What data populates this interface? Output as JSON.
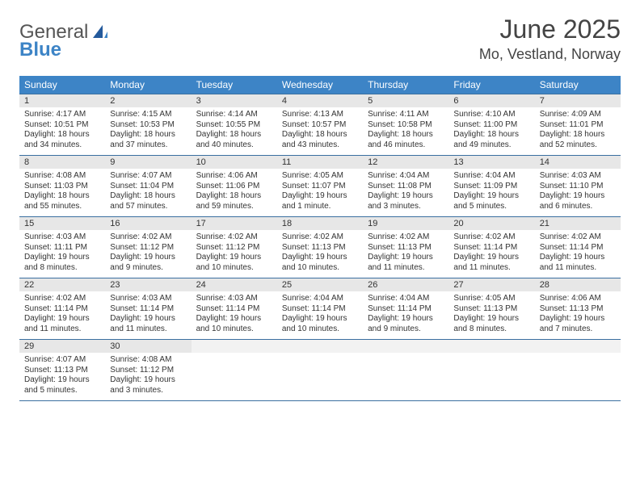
{
  "logo": {
    "text1": "General",
    "text2": "Blue"
  },
  "colors": {
    "header_bg": "#3d84c6",
    "row_border": "#3a6fa0",
    "daynum_bg": "#e7e7e7"
  },
  "title": {
    "month": "June 2025",
    "location": "Mo, Vestland, Norway"
  },
  "weekdays": [
    "Sunday",
    "Monday",
    "Tuesday",
    "Wednesday",
    "Thursday",
    "Friday",
    "Saturday"
  ],
  "weeks": [
    [
      {
        "num": "1",
        "sunrise": "Sunrise: 4:17 AM",
        "sunset": "Sunset: 10:51 PM",
        "day1": "Daylight: 18 hours",
        "day2": "and 34 minutes."
      },
      {
        "num": "2",
        "sunrise": "Sunrise: 4:15 AM",
        "sunset": "Sunset: 10:53 PM",
        "day1": "Daylight: 18 hours",
        "day2": "and 37 minutes."
      },
      {
        "num": "3",
        "sunrise": "Sunrise: 4:14 AM",
        "sunset": "Sunset: 10:55 PM",
        "day1": "Daylight: 18 hours",
        "day2": "and 40 minutes."
      },
      {
        "num": "4",
        "sunrise": "Sunrise: 4:13 AM",
        "sunset": "Sunset: 10:57 PM",
        "day1": "Daylight: 18 hours",
        "day2": "and 43 minutes."
      },
      {
        "num": "5",
        "sunrise": "Sunrise: 4:11 AM",
        "sunset": "Sunset: 10:58 PM",
        "day1": "Daylight: 18 hours",
        "day2": "and 46 minutes."
      },
      {
        "num": "6",
        "sunrise": "Sunrise: 4:10 AM",
        "sunset": "Sunset: 11:00 PM",
        "day1": "Daylight: 18 hours",
        "day2": "and 49 minutes."
      },
      {
        "num": "7",
        "sunrise": "Sunrise: 4:09 AM",
        "sunset": "Sunset: 11:01 PM",
        "day1": "Daylight: 18 hours",
        "day2": "and 52 minutes."
      }
    ],
    [
      {
        "num": "8",
        "sunrise": "Sunrise: 4:08 AM",
        "sunset": "Sunset: 11:03 PM",
        "day1": "Daylight: 18 hours",
        "day2": "and 55 minutes."
      },
      {
        "num": "9",
        "sunrise": "Sunrise: 4:07 AM",
        "sunset": "Sunset: 11:04 PM",
        "day1": "Daylight: 18 hours",
        "day2": "and 57 minutes."
      },
      {
        "num": "10",
        "sunrise": "Sunrise: 4:06 AM",
        "sunset": "Sunset: 11:06 PM",
        "day1": "Daylight: 18 hours",
        "day2": "and 59 minutes."
      },
      {
        "num": "11",
        "sunrise": "Sunrise: 4:05 AM",
        "sunset": "Sunset: 11:07 PM",
        "day1": "Daylight: 19 hours",
        "day2": "and 1 minute."
      },
      {
        "num": "12",
        "sunrise": "Sunrise: 4:04 AM",
        "sunset": "Sunset: 11:08 PM",
        "day1": "Daylight: 19 hours",
        "day2": "and 3 minutes."
      },
      {
        "num": "13",
        "sunrise": "Sunrise: 4:04 AM",
        "sunset": "Sunset: 11:09 PM",
        "day1": "Daylight: 19 hours",
        "day2": "and 5 minutes."
      },
      {
        "num": "14",
        "sunrise": "Sunrise: 4:03 AM",
        "sunset": "Sunset: 11:10 PM",
        "day1": "Daylight: 19 hours",
        "day2": "and 6 minutes."
      }
    ],
    [
      {
        "num": "15",
        "sunrise": "Sunrise: 4:03 AM",
        "sunset": "Sunset: 11:11 PM",
        "day1": "Daylight: 19 hours",
        "day2": "and 8 minutes."
      },
      {
        "num": "16",
        "sunrise": "Sunrise: 4:02 AM",
        "sunset": "Sunset: 11:12 PM",
        "day1": "Daylight: 19 hours",
        "day2": "and 9 minutes."
      },
      {
        "num": "17",
        "sunrise": "Sunrise: 4:02 AM",
        "sunset": "Sunset: 11:12 PM",
        "day1": "Daylight: 19 hours",
        "day2": "and 10 minutes."
      },
      {
        "num": "18",
        "sunrise": "Sunrise: 4:02 AM",
        "sunset": "Sunset: 11:13 PM",
        "day1": "Daylight: 19 hours",
        "day2": "and 10 minutes."
      },
      {
        "num": "19",
        "sunrise": "Sunrise: 4:02 AM",
        "sunset": "Sunset: 11:13 PM",
        "day1": "Daylight: 19 hours",
        "day2": "and 11 minutes."
      },
      {
        "num": "20",
        "sunrise": "Sunrise: 4:02 AM",
        "sunset": "Sunset: 11:14 PM",
        "day1": "Daylight: 19 hours",
        "day2": "and 11 minutes."
      },
      {
        "num": "21",
        "sunrise": "Sunrise: 4:02 AM",
        "sunset": "Sunset: 11:14 PM",
        "day1": "Daylight: 19 hours",
        "day2": "and 11 minutes."
      }
    ],
    [
      {
        "num": "22",
        "sunrise": "Sunrise: 4:02 AM",
        "sunset": "Sunset: 11:14 PM",
        "day1": "Daylight: 19 hours",
        "day2": "and 11 minutes."
      },
      {
        "num": "23",
        "sunrise": "Sunrise: 4:03 AM",
        "sunset": "Sunset: 11:14 PM",
        "day1": "Daylight: 19 hours",
        "day2": "and 11 minutes."
      },
      {
        "num": "24",
        "sunrise": "Sunrise: 4:03 AM",
        "sunset": "Sunset: 11:14 PM",
        "day1": "Daylight: 19 hours",
        "day2": "and 10 minutes."
      },
      {
        "num": "25",
        "sunrise": "Sunrise: 4:04 AM",
        "sunset": "Sunset: 11:14 PM",
        "day1": "Daylight: 19 hours",
        "day2": "and 10 minutes."
      },
      {
        "num": "26",
        "sunrise": "Sunrise: 4:04 AM",
        "sunset": "Sunset: 11:14 PM",
        "day1": "Daylight: 19 hours",
        "day2": "and 9 minutes."
      },
      {
        "num": "27",
        "sunrise": "Sunrise: 4:05 AM",
        "sunset": "Sunset: 11:13 PM",
        "day1": "Daylight: 19 hours",
        "day2": "and 8 minutes."
      },
      {
        "num": "28",
        "sunrise": "Sunrise: 4:06 AM",
        "sunset": "Sunset: 11:13 PM",
        "day1": "Daylight: 19 hours",
        "day2": "and 7 minutes."
      }
    ],
    [
      {
        "num": "29",
        "sunrise": "Sunrise: 4:07 AM",
        "sunset": "Sunset: 11:13 PM",
        "day1": "Daylight: 19 hours",
        "day2": "and 5 minutes."
      },
      {
        "num": "30",
        "sunrise": "Sunrise: 4:08 AM",
        "sunset": "Sunset: 11:12 PM",
        "day1": "Daylight: 19 hours",
        "day2": "and 3 minutes."
      },
      {
        "empty": true
      },
      {
        "empty": true
      },
      {
        "empty": true
      },
      {
        "empty": true
      },
      {
        "empty": true
      }
    ]
  ]
}
